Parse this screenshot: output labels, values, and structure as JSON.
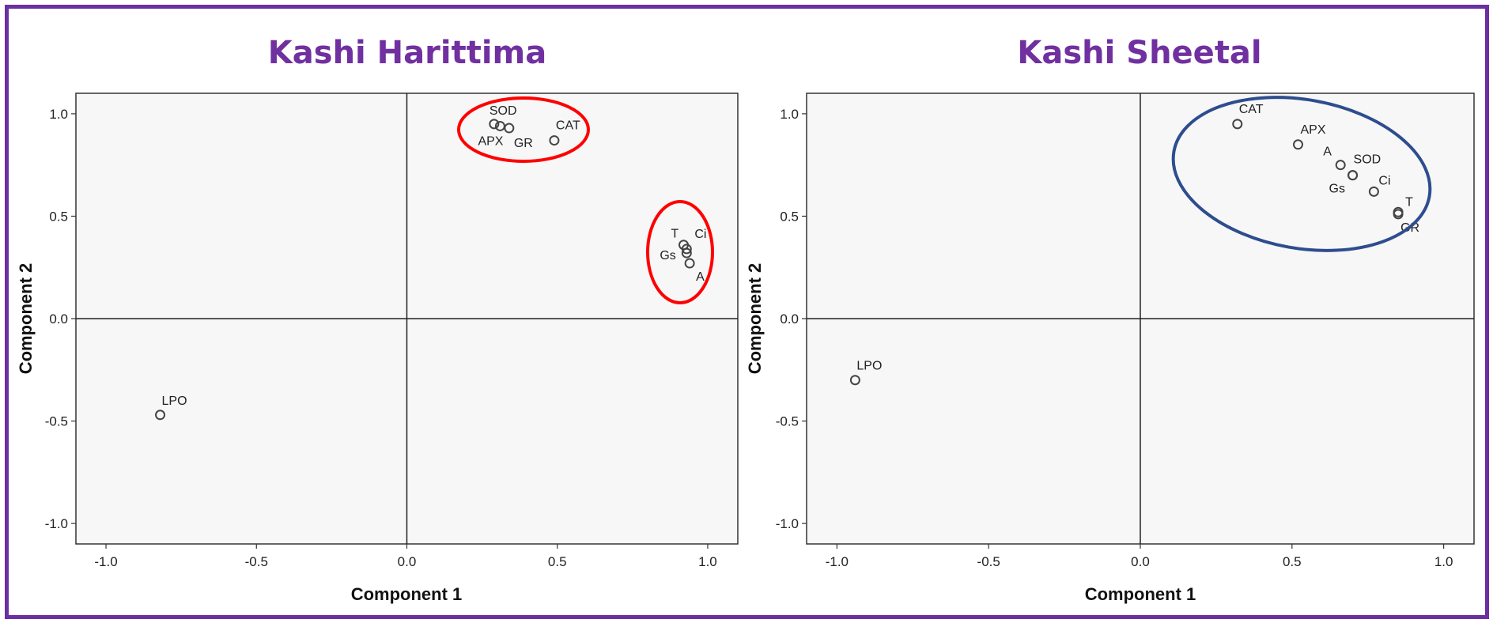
{
  "chart_data": [
    {
      "type": "scatter",
      "title": "Kashi Harittima",
      "xlabel": "Component 1",
      "ylabel": "Component 2",
      "xlim": [
        -1.1,
        1.1
      ],
      "ylim": [
        -1.1,
        1.1
      ],
      "xticks": [
        "-1.0",
        "-0.5",
        "0.0",
        "0.5",
        "1.0"
      ],
      "yticks": [
        "1.0",
        "0.5",
        "0.0",
        "-0.5",
        "-1.0"
      ],
      "reference_lines": [
        0,
        0
      ],
      "points": [
        {
          "label": "SOD",
          "x": 0.29,
          "y": 0.95
        },
        {
          "label": "APX",
          "x": 0.31,
          "y": 0.94
        },
        {
          "label": "GR",
          "x": 0.34,
          "y": 0.93
        },
        {
          "label": "CAT",
          "x": 0.49,
          "y": 0.87
        },
        {
          "label": "T",
          "x": 0.92,
          "y": 0.36
        },
        {
          "label": "Ci",
          "x": 0.93,
          "y": 0.34
        },
        {
          "label": "Gs",
          "x": 0.93,
          "y": 0.32
        },
        {
          "label": "A",
          "x": 0.94,
          "y": 0.27
        },
        {
          "label": "LPO",
          "x": -0.82,
          "y": -0.47
        }
      ],
      "highlight_ellipses": {
        "color": "#ff0000",
        "groups": [
          [
            "SOD",
            "APX",
            "GR",
            "CAT"
          ],
          [
            "T",
            "Ci",
            "Gs",
            "A"
          ]
        ]
      },
      "grid": false
    },
    {
      "type": "scatter",
      "title": "Kashi Sheetal",
      "xlabel": "Component 1",
      "ylabel": "Component 2",
      "xlim": [
        -1.1,
        1.1
      ],
      "ylim": [
        -1.1,
        1.1
      ],
      "xticks": [
        "-1.0",
        "-0.5",
        "0.0",
        "0.5",
        "1.0"
      ],
      "yticks": [
        "1.0",
        "0.5",
        "0.0",
        "-0.5",
        "-1.0"
      ],
      "reference_lines": [
        0,
        0
      ],
      "points": [
        {
          "label": "CAT",
          "x": 0.32,
          "y": 0.95
        },
        {
          "label": "APX",
          "x": 0.52,
          "y": 0.85
        },
        {
          "label": "A",
          "x": 0.66,
          "y": 0.75
        },
        {
          "label": "SOD",
          "x": 0.7,
          "y": 0.7
        },
        {
          "label": "Gs",
          "x": 0.7,
          "y": 0.7
        },
        {
          "label": "Ci",
          "x": 0.77,
          "y": 0.62
        },
        {
          "label": "T",
          "x": 0.85,
          "y": 0.52
        },
        {
          "label": "GR",
          "x": 0.85,
          "y": 0.51
        },
        {
          "label": "LPO",
          "x": -0.94,
          "y": -0.3
        }
      ],
      "highlight_ellipses": {
        "color": "#2e4d8f",
        "groups": [
          [
            "CAT",
            "APX",
            "A",
            "SOD",
            "Gs",
            "Ci",
            "T",
            "GR"
          ]
        ]
      },
      "grid": false
    }
  ]
}
